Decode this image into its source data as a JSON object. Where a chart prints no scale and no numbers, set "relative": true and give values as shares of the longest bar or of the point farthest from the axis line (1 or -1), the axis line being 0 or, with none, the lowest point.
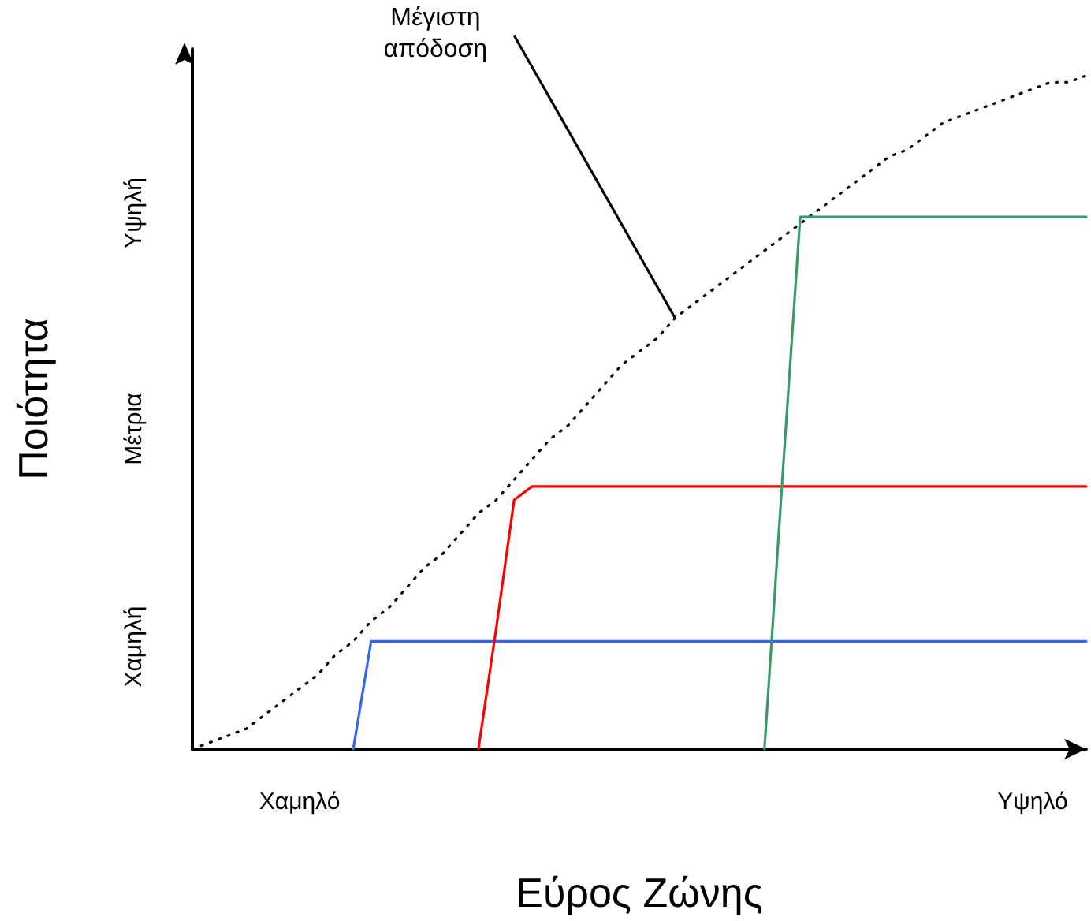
{
  "chart_data": {
    "type": "line",
    "relative": true,
    "xlabel": "Εύρος Ζώνης",
    "ylabel": "Ποιότητα",
    "annotations": [
      "Μέγιστη\nαπόδοση",
      "Χαμηλή",
      "Μέτρια",
      "Υψηλή"
    ],
    "categories": [
      null,
      null,
      null,
      null,
      null,
      null,
      "Χαμηλό",
      null,
      null,
      null,
      null,
      null,
      null,
      null,
      null,
      null,
      null,
      null,
      null,
      null,
      null,
      null,
      null,
      null,
      null,
      null,
      null,
      null,
      null,
      null,
      null,
      null,
      null,
      null,
      null,
      null,
      null,
      null,
      null,
      null,
      null,
      null,
      null,
      null,
      null,
      null,
      null,
      "Υψηλό",
      null,
      null,
      null
    ],
    "grid": false,
    "marker": "none",
    "series": [
      {
        "color": "#000000",
        "line_style": "dotted",
        "values": [
          0,
          0.01,
          0.02,
          0.03,
          0.05,
          0.07,
          0.09,
          0.11,
          0.14,
          0.16,
          0.19,
          0.21,
          0.24,
          0.27,
          0.29,
          0.32,
          0.35,
          0.37,
          0.4,
          0.43,
          0.46,
          0.48,
          0.51,
          0.54,
          0.57,
          0.59,
          0.61,
          0.64,
          0.66,
          0.68,
          0.7,
          0.72,
          0.74,
          0.76,
          0.78,
          0.8,
          0.82,
          0.84,
          0.86,
          0.88,
          0.89,
          0.91,
          0.93,
          0.94,
          0.95,
          0.96,
          0.97,
          0.98,
          0.99,
          0.99,
          1
        ]
      },
      {
        "color": "#3366ee",
        "line_style": "solid",
        "values": [
          null,
          null,
          null,
          null,
          null,
          null,
          null,
          null,
          null,
          0,
          0.16,
          0.16,
          0.16,
          0.16,
          0.16,
          0.16,
          0.16,
          0.16,
          0.16,
          0.16,
          0.16,
          0.16,
          0.16,
          0.16,
          0.16,
          0.16,
          0.16,
          0.16,
          0.16,
          0.16,
          0.16,
          0.16,
          0.16,
          0.16,
          0.16,
          0.16,
          0.16,
          0.16,
          0.16,
          0.16,
          0.16,
          0.16,
          0.16,
          0.16,
          0.16,
          0.16,
          0.16,
          0.16,
          0.16,
          0.16,
          0.16
        ]
      },
      {
        "color": "#ff0000",
        "line_style": "solid",
        "values": [
          null,
          null,
          null,
          null,
          null,
          null,
          null,
          null,
          null,
          null,
          null,
          null,
          null,
          null,
          null,
          null,
          0,
          0.18,
          0.37,
          0.39,
          0.39,
          0.39,
          0.39,
          0.39,
          0.39,
          0.39,
          0.39,
          0.39,
          0.39,
          0.39,
          0.39,
          0.39,
          0.39,
          0.39,
          0.39,
          0.39,
          0.39,
          0.39,
          0.39,
          0.39,
          0.39,
          0.39,
          0.39,
          0.39,
          0.39,
          0.39,
          0.39,
          0.39,
          0.39,
          0.39,
          0.39
        ]
      },
      {
        "color": "#3a9a6a",
        "line_style": "solid",
        "values": [
          null,
          null,
          null,
          null,
          null,
          null,
          null,
          null,
          null,
          null,
          null,
          null,
          null,
          null,
          null,
          null,
          null,
          null,
          null,
          null,
          null,
          null,
          null,
          null,
          null,
          null,
          null,
          null,
          null,
          null,
          null,
          null,
          0,
          0.4,
          0.79,
          0.79,
          0.79,
          0.79,
          0.79,
          0.79,
          0.79,
          0.79,
          0.79,
          0.79,
          0.79,
          0.79,
          0.79,
          0.79,
          0.79,
          0.79,
          0.79
        ]
      }
    ]
  }
}
